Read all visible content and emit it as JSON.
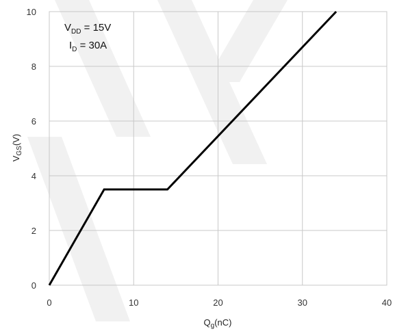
{
  "chart_data": {
    "type": "line",
    "xlabel": {
      "main": "Q",
      "sub": "g",
      "rest": "(nC)"
    },
    "ylabel": {
      "main": "V",
      "sub": "GS",
      "rest": "(V)"
    },
    "xlim": [
      0,
      40
    ],
    "ylim": [
      0,
      10
    ],
    "x_ticks": [
      "0",
      "10",
      "20",
      "30",
      "40"
    ],
    "y_ticks": [
      "0",
      "2",
      "4",
      "6",
      "8",
      "10"
    ],
    "grid": true,
    "series": [
      {
        "x": [
          0,
          6.5,
          14,
          34
        ],
        "y": [
          0,
          3.5,
          3.5,
          10
        ]
      }
    ],
    "annotations": [
      {
        "main": "V",
        "sub": "DD",
        "rest": " = 15V"
      },
      {
        "main": "I",
        "sub": "D",
        "rest": " = 30A"
      }
    ],
    "watermark_color": "#f1f1f1",
    "line_color": "#000000",
    "grid_color": "#c8c8c8"
  }
}
